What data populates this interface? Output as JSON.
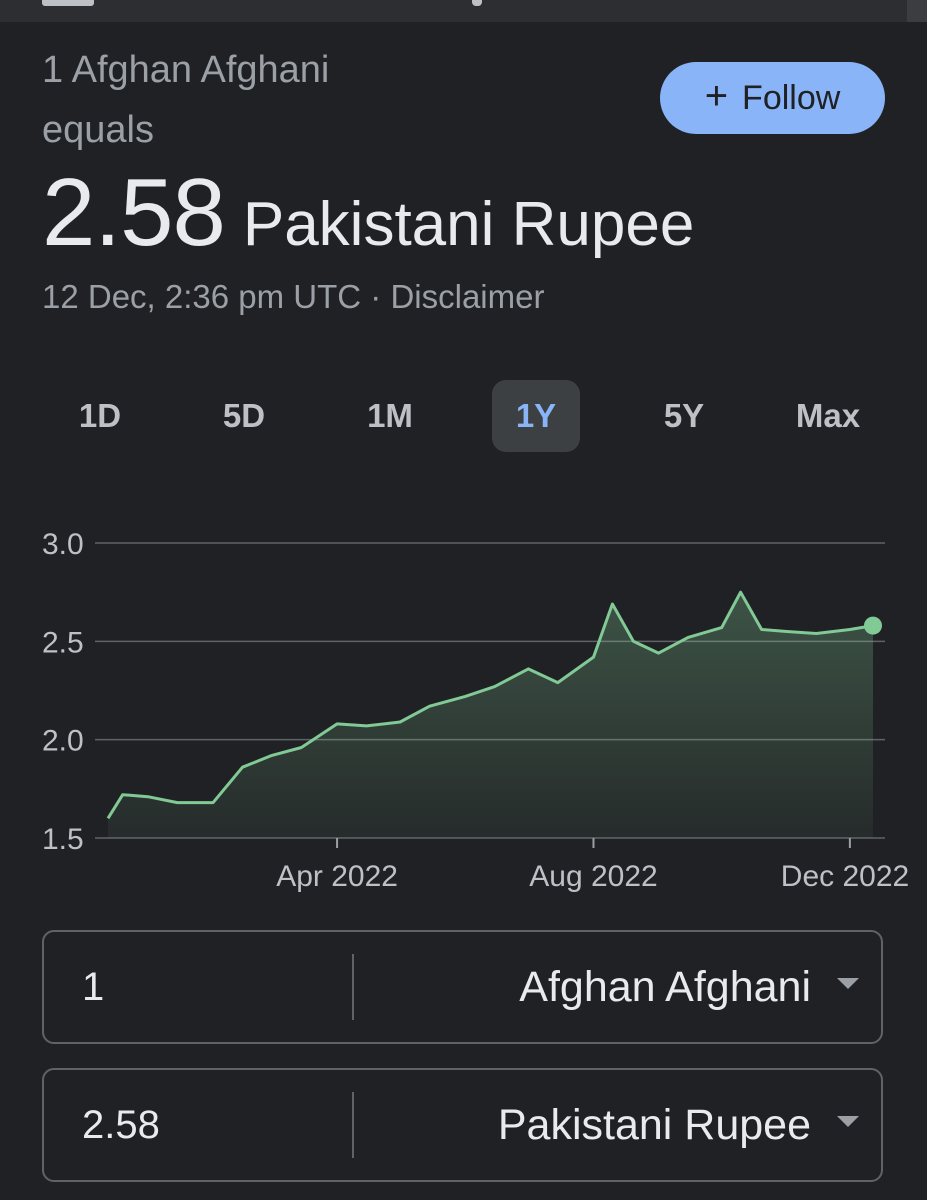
{
  "header": {
    "line1": "1 Afghan Afghani",
    "line2": "equals",
    "rate_value": "2.58",
    "rate_currency": "Pakistani Rupee",
    "timestamp": "12 Dec, 2:36 pm UTC",
    "separator": " · ",
    "disclaimer": "Disclaimer"
  },
  "follow_button": {
    "icon": "+",
    "label": "Follow"
  },
  "ranges": [
    "1D",
    "5D",
    "1M",
    "1Y",
    "5Y",
    "Max"
  ],
  "active_range": "1Y",
  "converter": {
    "from_amount": "1",
    "from_currency": "Afghan Afghani",
    "to_amount": "2.58",
    "to_currency": "Pakistani Rupee"
  },
  "colors": {
    "background": "#202124",
    "accent": "#8ab4f8",
    "line": "#81c995"
  },
  "chart_data": {
    "type": "area",
    "ylim": [
      1.5,
      3.0
    ],
    "y_ticks": [
      "3.0",
      "2.5",
      "2.0",
      "1.5"
    ],
    "x_ticks": [
      "Apr 2022",
      "Aug 2022",
      "Dec 2022"
    ],
    "grid": true,
    "x": [
      "2021-12-13",
      "2021-12-20",
      "2022-01-01",
      "2022-01-15",
      "2022-02-01",
      "2022-02-15",
      "2022-03-01",
      "2022-03-15",
      "2022-04-01",
      "2022-04-15",
      "2022-05-01",
      "2022-05-15",
      "2022-06-01",
      "2022-06-15",
      "2022-07-01",
      "2022-07-15",
      "2022-08-01",
      "2022-08-10",
      "2022-08-20",
      "2022-09-01",
      "2022-09-15",
      "2022-10-01",
      "2022-10-10",
      "2022-10-20",
      "2022-11-01",
      "2022-11-15",
      "2022-12-01",
      "2022-12-12"
    ],
    "values": [
      1.6,
      1.72,
      1.71,
      1.68,
      1.68,
      1.86,
      1.92,
      1.96,
      2.08,
      2.07,
      2.09,
      2.17,
      2.22,
      2.27,
      2.36,
      2.29,
      2.42,
      2.69,
      2.5,
      2.44,
      2.52,
      2.57,
      2.75,
      2.56,
      2.55,
      2.54,
      2.56,
      2.58
    ]
  }
}
